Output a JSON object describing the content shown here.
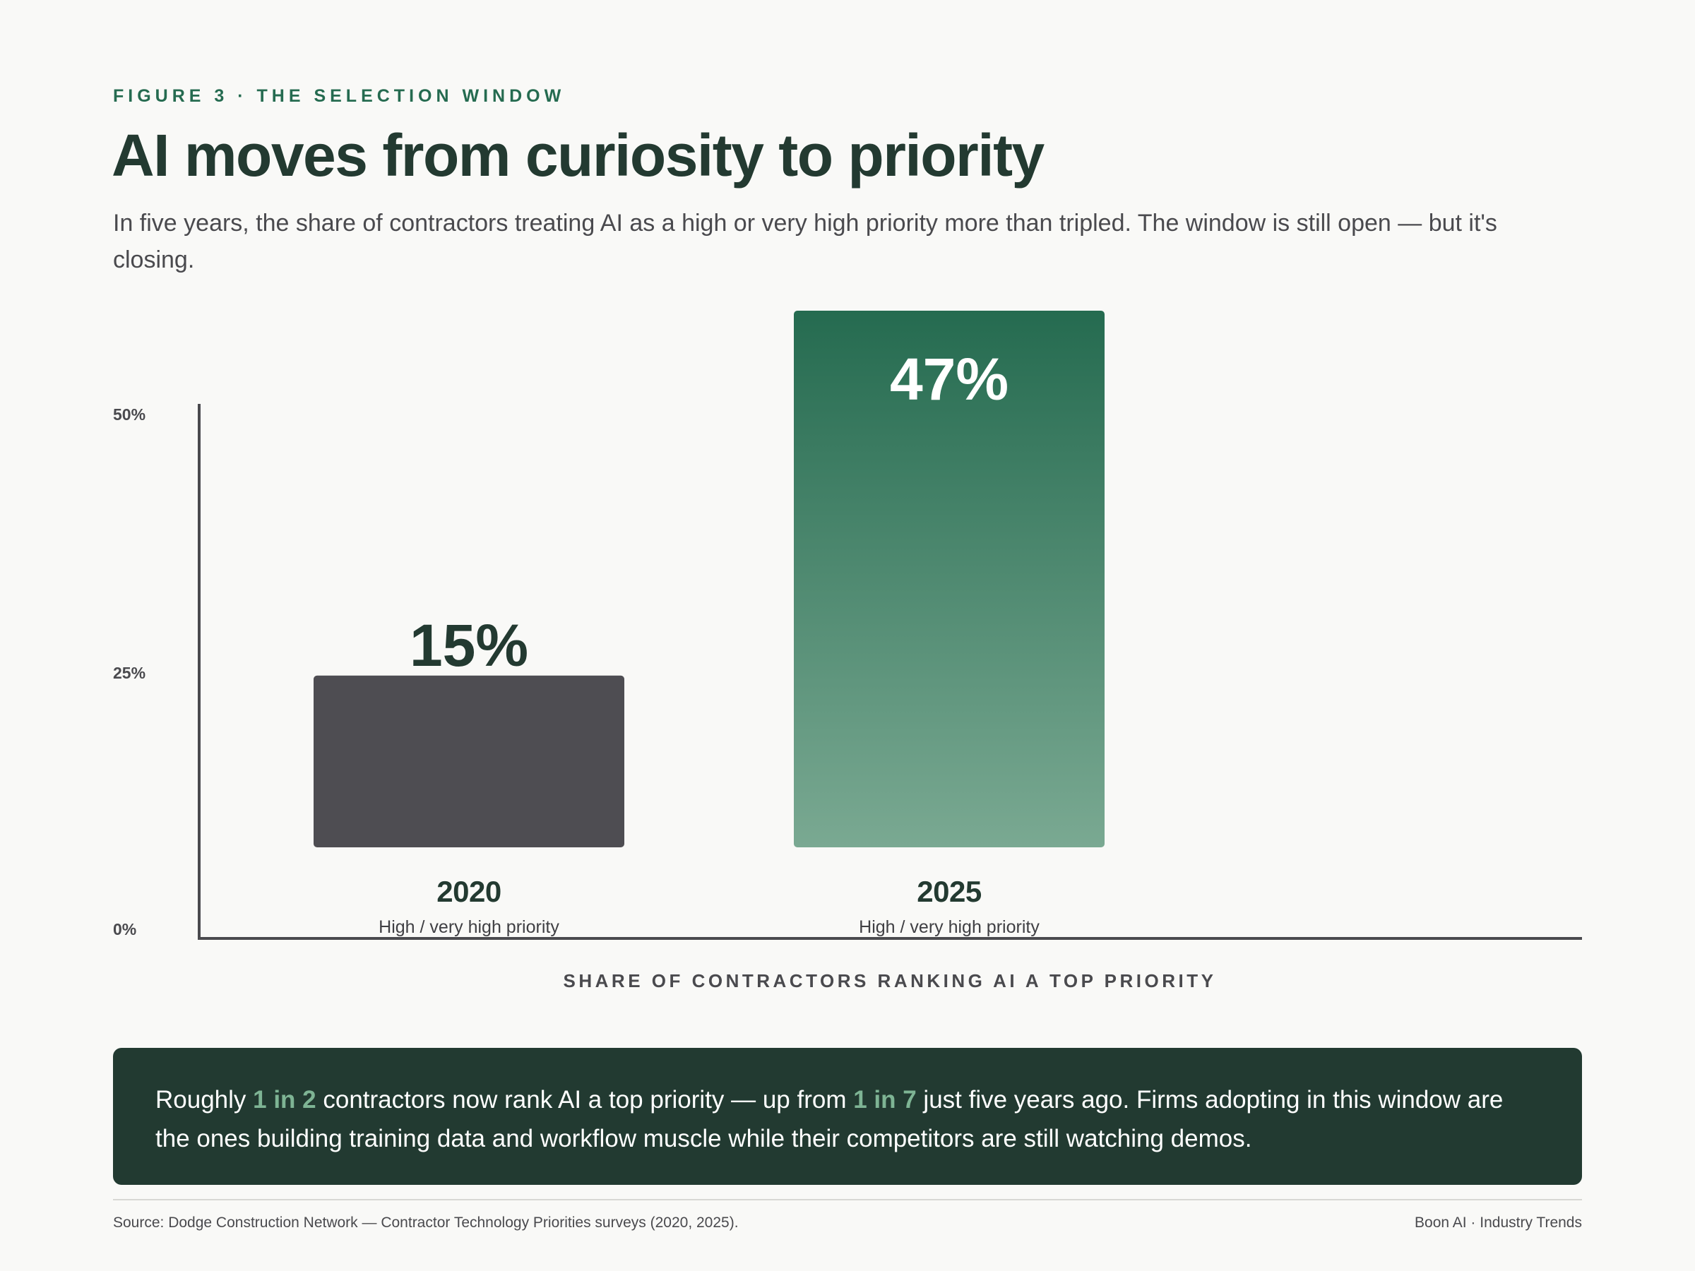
{
  "header": {
    "eyebrow": "FIGURE 3 · THE SELECTION WINDOW",
    "title": "AI moves from curiosity to priority",
    "subtitle": "In five years, the share of contractors treating AI as a high or very high priority more than tripled. The window is still open — but it's closing."
  },
  "chart_data": {
    "type": "bar",
    "title": "AI moves from curiosity to priority",
    "xlabel": "SHARE OF CONTRACTORS RANKING AI A TOP PRIORITY",
    "ylabel": "",
    "categories": [
      "2020",
      "2025"
    ],
    "category_sublabels": [
      "High / very high priority",
      "High / very high priority"
    ],
    "values": [
      15,
      47
    ],
    "value_labels": [
      "15%",
      "47%"
    ],
    "y_ticks": [
      "0%",
      "25%",
      "50%"
    ],
    "bar_colors": [
      "#4e4d52",
      "#256b50"
    ],
    "bar_gradient_end": "#7aa992",
    "grid": false,
    "legend": "none"
  },
  "callout": {
    "text_1": "Roughly ",
    "highlight_1": "1 in 2",
    "text_2": " contractors now rank AI a top priority — up from ",
    "highlight_2": "1 in 7",
    "text_3": " just five years ago. Firms adopting in this window are the ones building training data and workflow muscle while their competitors are still watching demos."
  },
  "footer": {
    "source": "Source: Dodge Construction Network — Contractor Technology Priorities surveys (2020, 2025).",
    "brand": "Boon AI · Industry Trends"
  },
  "colors": {
    "accent": "#256b50",
    "dark": "#223a31",
    "highlight": "#7eb494",
    "neutral_bar": "#4e4d52",
    "background": "#f9f9f7"
  }
}
